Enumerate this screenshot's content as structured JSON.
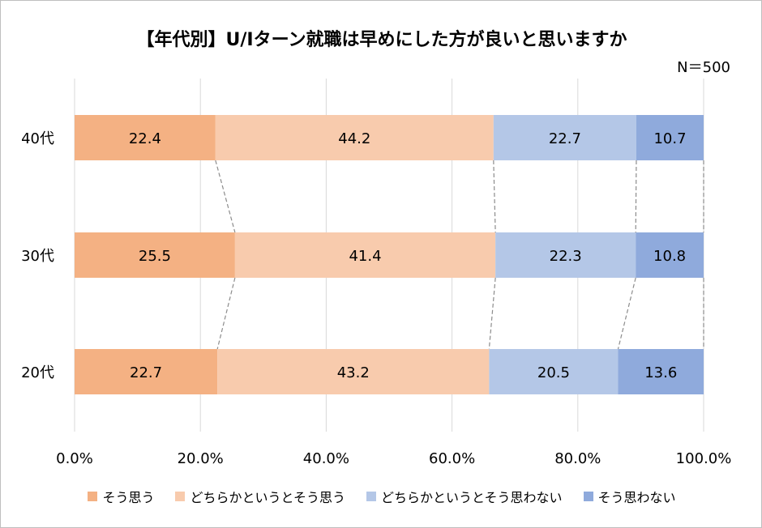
{
  "chart_data": {
    "type": "bar",
    "orientation": "horizontal",
    "stacked": true,
    "title": "【年代別】U/Iターン就職は早めにした方が良いと思いますか",
    "note": "N＝500",
    "categories": [
      "40代",
      "30代",
      "20代"
    ],
    "series": [
      {
        "name": "そう思う",
        "color": "#F4B183",
        "values": [
          22.4,
          25.5,
          22.7
        ],
        "labels": [
          "22.4",
          "25.5",
          "22.7"
        ]
      },
      {
        "name": "どちらかというとそう思う",
        "color": "#F8CBAD",
        "values": [
          44.2,
          41.4,
          43.2
        ],
        "labels": [
          "44.2",
          "41.4",
          "43.2"
        ]
      },
      {
        "name": "どちらかというとそう思わない",
        "color": "#B4C7E7",
        "values": [
          22.7,
          22.3,
          20.5
        ],
        "labels": [
          "22.7",
          "22.3",
          "20.5"
        ]
      },
      {
        "name": "そう思わない",
        "color": "#8FAADC",
        "values": [
          10.7,
          10.8,
          13.6
        ],
        "labels": [
          "10.7",
          "10.8",
          "13.6"
        ]
      }
    ],
    "xlim": [
      0,
      100
    ],
    "xticks": [
      0,
      20,
      40,
      60,
      80,
      100
    ],
    "xtick_labels": [
      "0.0%",
      "20.0%",
      "40.0%",
      "60.0%",
      "80.0%",
      "100.0%"
    ],
    "grid": true,
    "series_lines": true,
    "legend_position": "bottom"
  }
}
